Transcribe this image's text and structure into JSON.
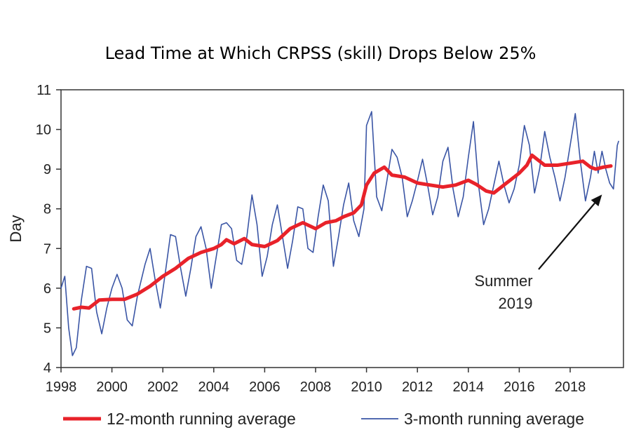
{
  "chart_data": {
    "type": "line",
    "title": "Lead Time at Which CRPSS (skill) Drops Below 25%",
    "xlabel": "",
    "ylabel": "Day",
    "xlim": [
      1998,
      2019.9
    ],
    "ylim": [
      4,
      11
    ],
    "x_ticks": [
      1998,
      2000,
      2002,
      2004,
      2006,
      2008,
      2010,
      2012,
      2014,
      2016,
      2018
    ],
    "y_ticks": [
      4,
      5,
      6,
      7,
      8,
      9,
      10,
      11
    ],
    "grid": false,
    "legend_position": "bottom",
    "annotation": {
      "line1": "Summer",
      "line2": "2019",
      "target": [
        2019.25,
        8.5
      ]
    },
    "series": [
      {
        "name": "12-month running average",
        "color": "#e8222a",
        "points": [
          [
            1998.5,
            5.48
          ],
          [
            1998.8,
            5.52
          ],
          [
            1999.1,
            5.5
          ],
          [
            1999.3,
            5.6
          ],
          [
            1999.5,
            5.7
          ],
          [
            2000.0,
            5.72
          ],
          [
            2000.5,
            5.72
          ],
          [
            2001.0,
            5.85
          ],
          [
            2001.5,
            6.05
          ],
          [
            2002.0,
            6.3
          ],
          [
            2002.5,
            6.5
          ],
          [
            2003.0,
            6.75
          ],
          [
            2003.5,
            6.9
          ],
          [
            2004.0,
            7.0
          ],
          [
            2004.3,
            7.1
          ],
          [
            2004.5,
            7.22
          ],
          [
            2004.8,
            7.12
          ],
          [
            2005.2,
            7.25
          ],
          [
            2005.5,
            7.1
          ],
          [
            2006.0,
            7.05
          ],
          [
            2006.5,
            7.2
          ],
          [
            2007.0,
            7.5
          ],
          [
            2007.5,
            7.65
          ],
          [
            2008.0,
            7.5
          ],
          [
            2008.4,
            7.65
          ],
          [
            2008.8,
            7.7
          ],
          [
            2009.1,
            7.8
          ],
          [
            2009.5,
            7.9
          ],
          [
            2009.8,
            8.1
          ],
          [
            2010.0,
            8.6
          ],
          [
            2010.3,
            8.9
          ],
          [
            2010.7,
            9.05
          ],
          [
            2011.0,
            8.85
          ],
          [
            2011.5,
            8.8
          ],
          [
            2012.0,
            8.65
          ],
          [
            2012.5,
            8.6
          ],
          [
            2013.0,
            8.55
          ],
          [
            2013.5,
            8.6
          ],
          [
            2014.0,
            8.72
          ],
          [
            2014.3,
            8.62
          ],
          [
            2014.7,
            8.45
          ],
          [
            2015.0,
            8.4
          ],
          [
            2015.5,
            8.65
          ],
          [
            2016.0,
            8.9
          ],
          [
            2016.3,
            9.1
          ],
          [
            2016.5,
            9.35
          ],
          [
            2016.8,
            9.2
          ],
          [
            2017.0,
            9.1
          ],
          [
            2017.5,
            9.1
          ],
          [
            2018.0,
            9.15
          ],
          [
            2018.5,
            9.2
          ],
          [
            2018.8,
            9.05
          ],
          [
            2019.0,
            9.0
          ],
          [
            2019.3,
            9.05
          ],
          [
            2019.6,
            9.08
          ]
        ]
      },
      {
        "name": "3-month running average",
        "color": "#3a55a5",
        "points": [
          [
            1998.0,
            6.0
          ],
          [
            1998.15,
            6.3
          ],
          [
            1998.3,
            5.0
          ],
          [
            1998.45,
            4.3
          ],
          [
            1998.6,
            4.5
          ],
          [
            1998.8,
            5.7
          ],
          [
            1999.0,
            6.55
          ],
          [
            1999.2,
            6.5
          ],
          [
            1999.4,
            5.4
          ],
          [
            1999.6,
            4.85
          ],
          [
            1999.8,
            5.5
          ],
          [
            2000.0,
            6.0
          ],
          [
            2000.2,
            6.35
          ],
          [
            2000.4,
            6.0
          ],
          [
            2000.6,
            5.2
          ],
          [
            2000.8,
            5.05
          ],
          [
            2001.0,
            5.8
          ],
          [
            2001.3,
            6.6
          ],
          [
            2001.5,
            7.0
          ],
          [
            2001.7,
            6.2
          ],
          [
            2001.9,
            5.5
          ],
          [
            2002.1,
            6.4
          ],
          [
            2002.3,
            7.35
          ],
          [
            2002.5,
            7.3
          ],
          [
            2002.7,
            6.5
          ],
          [
            2002.9,
            5.8
          ],
          [
            2003.1,
            6.5
          ],
          [
            2003.3,
            7.3
          ],
          [
            2003.5,
            7.55
          ],
          [
            2003.7,
            7.0
          ],
          [
            2003.9,
            6.0
          ],
          [
            2004.1,
            6.8
          ],
          [
            2004.3,
            7.6
          ],
          [
            2004.5,
            7.65
          ],
          [
            2004.7,
            7.5
          ],
          [
            2004.9,
            6.7
          ],
          [
            2005.1,
            6.6
          ],
          [
            2005.3,
            7.3
          ],
          [
            2005.5,
            8.35
          ],
          [
            2005.7,
            7.6
          ],
          [
            2005.9,
            6.3
          ],
          [
            2006.1,
            6.8
          ],
          [
            2006.3,
            7.6
          ],
          [
            2006.5,
            8.1
          ],
          [
            2006.7,
            7.3
          ],
          [
            2006.9,
            6.5
          ],
          [
            2007.1,
            7.2
          ],
          [
            2007.3,
            8.05
          ],
          [
            2007.5,
            8.0
          ],
          [
            2007.7,
            7.0
          ],
          [
            2007.9,
            6.9
          ],
          [
            2008.1,
            7.8
          ],
          [
            2008.3,
            8.6
          ],
          [
            2008.5,
            8.2
          ],
          [
            2008.7,
            6.55
          ],
          [
            2008.9,
            7.3
          ],
          [
            2009.1,
            8.1
          ],
          [
            2009.3,
            8.65
          ],
          [
            2009.5,
            7.7
          ],
          [
            2009.7,
            7.3
          ],
          [
            2009.9,
            8.0
          ],
          [
            2010.0,
            10.1
          ],
          [
            2010.2,
            10.45
          ],
          [
            2010.4,
            8.3
          ],
          [
            2010.6,
            7.95
          ],
          [
            2010.8,
            8.7
          ],
          [
            2011.0,
            9.5
          ],
          [
            2011.2,
            9.3
          ],
          [
            2011.4,
            8.8
          ],
          [
            2011.6,
            7.8
          ],
          [
            2011.8,
            8.2
          ],
          [
            2012.0,
            8.7
          ],
          [
            2012.2,
            9.25
          ],
          [
            2012.4,
            8.6
          ],
          [
            2012.6,
            7.85
          ],
          [
            2012.8,
            8.3
          ],
          [
            2013.0,
            9.2
          ],
          [
            2013.2,
            9.55
          ],
          [
            2013.4,
            8.5
          ],
          [
            2013.6,
            7.8
          ],
          [
            2013.8,
            8.3
          ],
          [
            2014.0,
            9.3
          ],
          [
            2014.2,
            10.2
          ],
          [
            2014.4,
            8.6
          ],
          [
            2014.6,
            7.6
          ],
          [
            2014.8,
            8.0
          ],
          [
            2015.0,
            8.6
          ],
          [
            2015.2,
            9.2
          ],
          [
            2015.4,
            8.6
          ],
          [
            2015.6,
            8.15
          ],
          [
            2015.8,
            8.5
          ],
          [
            2016.0,
            9.1
          ],
          [
            2016.2,
            10.1
          ],
          [
            2016.4,
            9.6
          ],
          [
            2016.6,
            8.4
          ],
          [
            2016.8,
            9.0
          ],
          [
            2017.0,
            9.95
          ],
          [
            2017.2,
            9.3
          ],
          [
            2017.4,
            8.8
          ],
          [
            2017.6,
            8.2
          ],
          [
            2017.8,
            8.8
          ],
          [
            2018.0,
            9.6
          ],
          [
            2018.2,
            10.4
          ],
          [
            2018.4,
            9.2
          ],
          [
            2018.6,
            8.2
          ],
          [
            2018.8,
            8.8
          ],
          [
            2018.95,
            9.45
          ],
          [
            2019.1,
            8.9
          ],
          [
            2019.25,
            9.45
          ],
          [
            2019.4,
            9.0
          ],
          [
            2019.55,
            8.65
          ],
          [
            2019.7,
            8.5
          ],
          [
            2019.85,
            9.6
          ],
          [
            2019.9,
            9.7
          ]
        ]
      }
    ]
  }
}
